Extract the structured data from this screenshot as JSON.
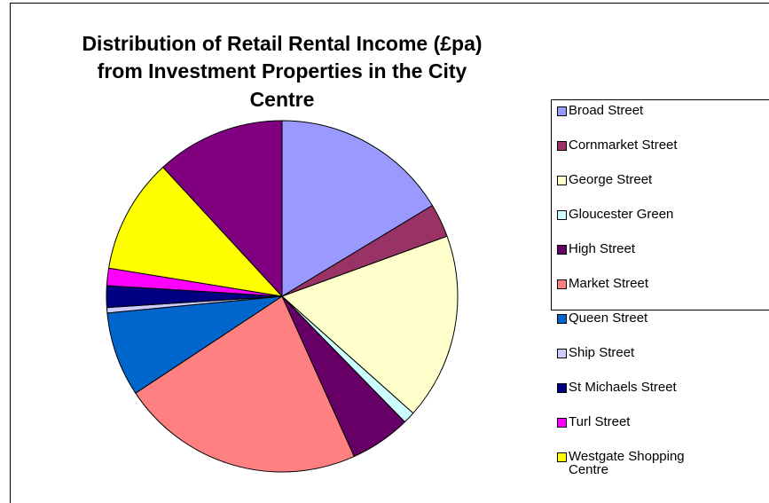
{
  "chart_data": {
    "type": "pie",
    "title": [
      "Distribution of Retail Rental Income (£pa)",
      "from Investment Properties in the City",
      "Centre"
    ],
    "categories": [
      "Broad Street",
      "Cornmarket Street",
      "George Street",
      "Gloucester Green",
      "High Street",
      "Market Street",
      "Queen Street",
      "Ship Street",
      "St Michaels Street",
      "Turl Street",
      "Westgate Shopping Centre",
      null
    ],
    "values": [
      16.4,
      3.1,
      17.2,
      1.1,
      5.6,
      22.5,
      7.8,
      0.5,
      2.0,
      1.6,
      10.6,
      11.9
    ],
    "colors": [
      "#9999ff",
      "#993366",
      "#ffffcc",
      "#ccffff",
      "#660066",
      "#ff8080",
      "#0066cc",
      "#ccccff",
      "#000080",
      "#ff00ff",
      "#ffff00",
      "#800080"
    ],
    "legend": "right"
  }
}
